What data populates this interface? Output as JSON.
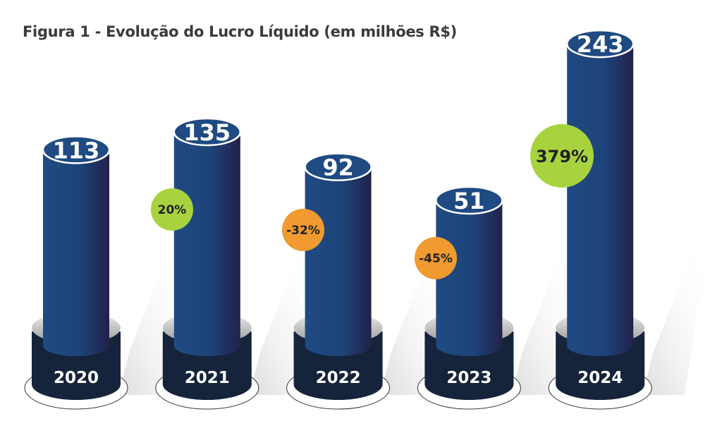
{
  "chart_data": {
    "type": "bar",
    "title": "Figura 1 - Evolução do Lucro Líquido (em milhões R$)",
    "categories": [
      "2020",
      "2021",
      "2022",
      "2023",
      "2024"
    ],
    "values": [
      113,
      135,
      92,
      51,
      243
    ],
    "value_labels": [
      "113",
      "135",
      "92",
      "51",
      "243"
    ],
    "changes": [
      null,
      "20%",
      "-32%",
      "-45%",
      "379%"
    ],
    "change_values": [
      null,
      20,
      -32,
      -45,
      379
    ],
    "xlabel": "",
    "ylabel": "",
    "colors": {
      "bar": "#1f4a82",
      "bar_dark": "#22244f",
      "base": "#15243a",
      "positive": "#a8d33f",
      "negative": "#f09a30"
    }
  }
}
